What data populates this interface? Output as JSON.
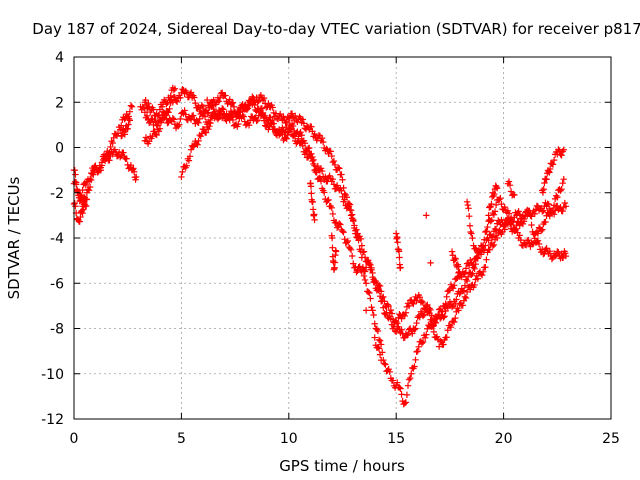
{
  "chart_data": {
    "type": "scatter",
    "title": "Day 187 of 2024, Sidereal Day-to-day VTEC variation (SDTVAR) for receiver p817",
    "xlabel": "GPS time / hours",
    "ylabel": "SDTVAR / TECUs",
    "xlim": [
      0,
      25
    ],
    "ylim": [
      -12,
      4
    ],
    "xticks": [
      0,
      5,
      10,
      15,
      20,
      25
    ],
    "yticks": [
      -12,
      -10,
      -8,
      -6,
      -4,
      -2,
      0,
      2,
      4
    ],
    "grid": true,
    "marker": "+",
    "color": "#ff0000",
    "series": [
      {
        "values": [
          [
            0.0,
            -1.0
          ],
          [
            0.2,
            -2.0
          ],
          [
            0.4,
            -2.6
          ],
          [
            0.6,
            -2.0
          ],
          [
            0.9,
            -1.2
          ],
          [
            1.2,
            -0.8
          ],
          [
            1.5,
            -0.3
          ],
          [
            1.8,
            0.2
          ],
          [
            2.1,
            0.9
          ],
          [
            2.4,
            1.3
          ],
          [
            2.7,
            1.8
          ],
          [
            3.1,
            1.8
          ],
          [
            3.4,
            1.4
          ],
          [
            3.7,
            1.0
          ],
          [
            4.0,
            1.2
          ],
          [
            4.3,
            1.6
          ],
          [
            4.6,
            2.0
          ],
          [
            4.9,
            2.3
          ],
          [
            5.2,
            2.5
          ],
          [
            5.5,
            2.2
          ],
          [
            5.8,
            1.8
          ],
          [
            6.1,
            1.6
          ],
          [
            6.4,
            1.8
          ],
          [
            6.7,
            2.2
          ],
          [
            7.0,
            2.3
          ],
          [
            7.3,
            1.9
          ],
          [
            7.6,
            1.6
          ],
          [
            7.9,
            1.7
          ],
          [
            8.2,
            2.0
          ],
          [
            8.5,
            2.2
          ],
          [
            8.8,
            2.1
          ],
          [
            9.1,
            1.8
          ],
          [
            9.4,
            1.5
          ],
          [
            9.7,
            1.2
          ],
          [
            10.0,
            1.3
          ],
          [
            10.3,
            1.4
          ],
          [
            10.6,
            1.1
          ],
          [
            10.9,
            0.9
          ],
          [
            11.2,
            0.6
          ],
          [
            11.5,
            0.3
          ],
          [
            11.8,
            -0.1
          ],
          [
            12.1,
            -0.6
          ],
          [
            12.4,
            -1.2
          ],
          [
            12.7,
            -2.2
          ],
          [
            13.0,
            -3.2
          ],
          [
            13.3,
            -4.5
          ],
          [
            13.6,
            -6.0
          ],
          [
            13.9,
            -7.2
          ],
          [
            14.2,
            -8.5
          ],
          [
            14.5,
            -9.6
          ],
          [
            14.8,
            -10.3
          ],
          [
            15.1,
            -10.6
          ],
          [
            15.4,
            -11.3
          ],
          [
            15.7,
            -10.0
          ],
          [
            16.0,
            -9.0
          ],
          [
            16.3,
            -8.3
          ],
          [
            16.6,
            -7.9
          ],
          [
            16.9,
            -7.5
          ],
          [
            17.2,
            -7.0
          ],
          [
            17.5,
            -6.3
          ],
          [
            17.8,
            -5.8
          ],
          [
            18.1,
            -5.5
          ],
          [
            18.4,
            -5.2
          ],
          [
            18.7,
            -4.9
          ],
          [
            19.0,
            -4.5
          ],
          [
            19.3,
            -4.1
          ],
          [
            19.6,
            -3.6
          ],
          [
            19.9,
            -3.2
          ],
          [
            20.2,
            -3.4
          ],
          [
            20.5,
            -3.6
          ],
          [
            20.8,
            -3.3
          ],
          [
            21.1,
            -3.0
          ],
          [
            21.4,
            -2.8
          ],
          [
            21.7,
            -2.7
          ],
          [
            22.0,
            -2.6
          ],
          [
            22.3,
            -2.8
          ],
          [
            22.6,
            -2.7
          ],
          [
            22.9,
            -2.6
          ]
        ]
      },
      {
        "values": [
          [
            0.0,
            -1.6
          ],
          [
            0.3,
            -2.1
          ],
          [
            0.6,
            -1.5
          ],
          [
            0.9,
            -1.0
          ],
          [
            1.2,
            -0.9
          ],
          [
            1.5,
            -0.5
          ],
          [
            1.8,
            -0.3
          ],
          [
            2.1,
            -0.2
          ],
          [
            2.4,
            -0.5
          ],
          [
            2.7,
            -1.0
          ],
          [
            2.9,
            -1.3
          ],
          [
            3.3,
            0.3
          ],
          [
            3.6,
            0.4
          ],
          [
            3.9,
            0.8
          ],
          [
            4.2,
            1.3
          ],
          [
            4.5,
            1.2
          ],
          [
            4.8,
            1.0
          ],
          [
            5.1,
            1.5
          ],
          [
            5.4,
            1.3
          ],
          [
            5.7,
            1.2
          ],
          [
            6.0,
            1.4
          ],
          [
            6.3,
            1.1
          ],
          [
            6.6,
            1.5
          ],
          [
            6.9,
            1.3
          ],
          [
            7.2,
            1.4
          ],
          [
            7.5,
            1.0
          ],
          [
            7.8,
            1.3
          ],
          [
            8.1,
            1.1
          ],
          [
            8.4,
            1.3
          ],
          [
            8.7,
            1.4
          ],
          [
            9.0,
            1.0
          ],
          [
            9.3,
            0.8
          ],
          [
            9.6,
            0.6
          ],
          [
            9.9,
            0.9
          ],
          [
            10.2,
            0.5
          ],
          [
            10.5,
            0.2
          ],
          [
            10.8,
            -0.2
          ],
          [
            11.1,
            -0.6
          ],
          [
            11.4,
            -1.0
          ],
          [
            11.7,
            -1.3
          ],
          [
            12.0,
            -1.5
          ],
          [
            12.3,
            -1.8
          ],
          [
            12.6,
            -2.3
          ],
          [
            12.9,
            -3.0
          ],
          [
            13.2,
            -3.8
          ],
          [
            13.5,
            -4.6
          ],
          [
            13.8,
            -5.4
          ],
          [
            14.1,
            -6.0
          ],
          [
            14.4,
            -6.6
          ],
          [
            14.7,
            -7.3
          ],
          [
            15.0,
            -7.7
          ],
          [
            15.3,
            -7.4
          ],
          [
            15.6,
            -7.0
          ],
          [
            15.9,
            -6.6
          ],
          [
            16.2,
            -6.8
          ],
          [
            16.5,
            -7.2
          ],
          [
            16.8,
            -7.6
          ],
          [
            17.1,
            -7.5
          ],
          [
            17.4,
            -7.1
          ],
          [
            17.7,
            -6.8
          ],
          [
            18.0,
            -6.4
          ],
          [
            18.3,
            -5.9
          ],
          [
            18.6,
            -5.3
          ],
          [
            18.9,
            -4.6
          ],
          [
            19.2,
            -3.7
          ],
          [
            19.5,
            -2.9
          ],
          [
            19.8,
            -2.3
          ],
          [
            20.1,
            -2.8
          ],
          [
            20.4,
            -3.3
          ],
          [
            20.7,
            -4.0
          ],
          [
            21.0,
            -4.3
          ],
          [
            21.3,
            -4.2
          ],
          [
            21.6,
            -3.8
          ],
          [
            21.9,
            -3.3
          ],
          [
            22.2,
            -2.8
          ],
          [
            22.5,
            -2.2
          ],
          [
            22.8,
            -1.4
          ]
        ]
      },
      {
        "values": [
          [
            5.0,
            -1.3
          ],
          [
            5.3,
            -0.5
          ],
          [
            5.6,
            0.1
          ],
          [
            5.9,
            0.5
          ],
          [
            6.2,
            0.9
          ],
          [
            6.5,
            1.4
          ],
          [
            6.8,
            1.6
          ],
          [
            7.1,
            1.5
          ],
          [
            7.4,
            1.4
          ],
          [
            7.7,
            1.6
          ],
          [
            8.0,
            1.9
          ],
          [
            8.3,
            1.9
          ],
          [
            8.6,
            1.7
          ],
          [
            8.9,
            1.4
          ],
          [
            9.2,
            1.1
          ],
          [
            9.5,
            0.7
          ],
          [
            9.8,
            0.4
          ],
          [
            10.1,
            0.9
          ],
          [
            10.4,
            0.7
          ],
          [
            10.7,
            0.3
          ],
          [
            11.0,
            -0.3
          ],
          [
            11.3,
            -1.1
          ],
          [
            11.6,
            -1.9
          ],
          [
            11.9,
            -2.6
          ],
          [
            12.2,
            -3.3
          ],
          [
            12.5,
            -3.7
          ],
          [
            12.8,
            -4.4
          ],
          [
            13.1,
            -5.3
          ],
          [
            13.4,
            -5.5
          ],
          [
            13.7,
            -5.1
          ],
          [
            14.0,
            -5.9
          ],
          [
            14.3,
            -6.8
          ],
          [
            14.6,
            -7.5
          ],
          [
            14.9,
            -7.9
          ],
          [
            15.2,
            -8.2
          ],
          [
            15.5,
            -8.3
          ],
          [
            15.8,
            -8.0
          ],
          [
            16.1,
            -7.5
          ],
          [
            16.4,
            -7.1
          ],
          [
            16.7,
            -7.9
          ],
          [
            17.0,
            -8.8
          ],
          [
            17.3,
            -8.4
          ],
          [
            17.6,
            -7.7
          ],
          [
            17.9,
            -7.2
          ],
          [
            18.2,
            -6.6
          ],
          [
            18.5,
            -6.1
          ],
          [
            18.8,
            -5.8
          ],
          [
            19.1,
            -5.3
          ],
          [
            19.4,
            -4.3
          ],
          [
            19.7,
            -4.0
          ],
          [
            20.0,
            -3.5
          ],
          [
            20.3,
            -3.2
          ],
          [
            20.6,
            -3.0
          ],
          [
            20.9,
            -3.0
          ],
          [
            21.2,
            -2.9
          ],
          [
            21.5,
            -4.2
          ],
          [
            21.8,
            -4.5
          ],
          [
            22.1,
            -4.7
          ],
          [
            22.4,
            -4.8
          ],
          [
            22.7,
            -4.7
          ],
          [
            22.9,
            -4.8
          ]
        ]
      },
      {
        "values": [
          [
            0.0,
            -2.5
          ],
          [
            0.2,
            -3.2
          ],
          [
            0.4,
            -2.9
          ],
          [
            0.6,
            -2.3
          ],
          [
            2.2,
            0.5
          ],
          [
            2.4,
            0.8
          ],
          [
            2.6,
            1.2
          ],
          [
            3.3,
            2.0
          ],
          [
            3.5,
            1.8
          ],
          [
            3.8,
            1.4
          ],
          [
            4.1,
            1.8
          ],
          [
            4.4,
            2.2
          ],
          [
            4.7,
            2.6
          ],
          [
            6.2,
            2.1
          ],
          [
            6.5,
            1.7
          ],
          [
            11.0,
            -1.6
          ],
          [
            11.1,
            -2.4
          ],
          [
            11.2,
            -3.2
          ],
          [
            12.0,
            -3.9
          ],
          [
            12.1,
            -5.4
          ],
          [
            12.2,
            -4.6
          ],
          [
            13.6,
            -7.2
          ],
          [
            14.0,
            -8.4
          ],
          [
            14.3,
            -9.4
          ],
          [
            15.0,
            -3.8
          ],
          [
            15.1,
            -4.5
          ],
          [
            15.2,
            -5.3
          ],
          [
            16.4,
            -3.0
          ],
          [
            16.6,
            -5.1
          ],
          [
            17.6,
            -4.6
          ],
          [
            17.8,
            -5.2
          ],
          [
            18.0,
            -5.6
          ],
          [
            18.3,
            -2.4
          ],
          [
            18.5,
            -3.8
          ],
          [
            18.8,
            -4.9
          ],
          [
            19.3,
            -3.0
          ],
          [
            19.5,
            -2.0
          ],
          [
            19.7,
            -1.8
          ],
          [
            20.2,
            -1.6
          ],
          [
            20.5,
            -2.1
          ],
          [
            21.8,
            -1.9
          ],
          [
            22.0,
            -1.4
          ],
          [
            22.2,
            -0.7
          ],
          [
            22.5,
            -0.3
          ],
          [
            22.8,
            -0.1
          ]
        ]
      }
    ]
  }
}
